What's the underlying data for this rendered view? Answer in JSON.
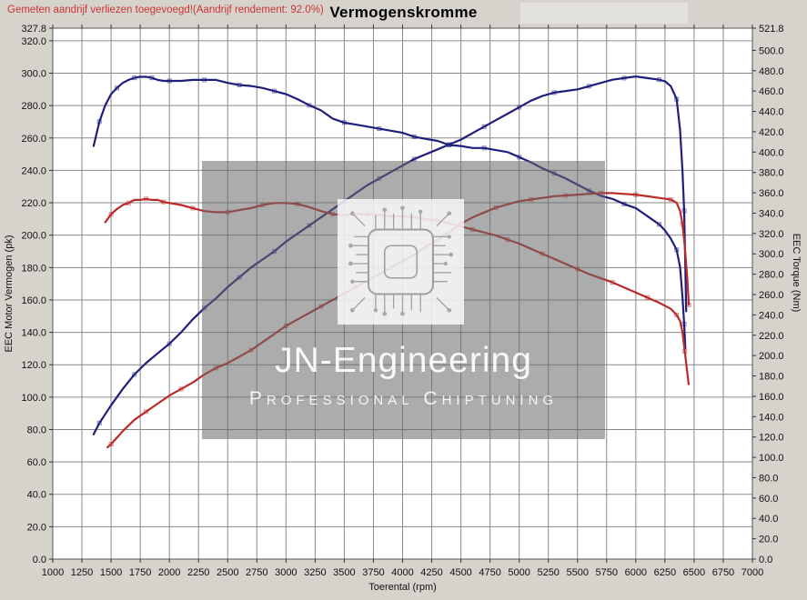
{
  "header": {
    "note": "Gemeten aandrijf verliezen toegevoegd!(Aandrijf rendement: 92.0%)",
    "title": "Vermogenskromme"
  },
  "watermark": {
    "line1": "JN-Engineering",
    "line2": "Professional Chiptuning"
  },
  "colors": {
    "background": "#d6d3cc",
    "plot_background": "#ffffff",
    "grid": "#8a8a8a",
    "frame": "#555555",
    "tuned_series": "#1e1e7d",
    "stock_series": "#bb2a28",
    "note_text": "#cc3333"
  },
  "chart_data": {
    "type": "line",
    "title": "Vermogenskromme",
    "x_axis": {
      "label": "Toerental (rpm)",
      "min": 1000,
      "max": 7000,
      "tick_step": 250,
      "tick_labels": [
        "1000",
        "1250",
        "1500",
        "1750",
        "2000",
        "2250",
        "2500",
        "2750",
        "3000",
        "3250",
        "3500",
        "3750",
        "4000",
        "4250",
        "4500",
        "4750",
        "5000",
        "5250",
        "5500",
        "5750",
        "6000",
        "6250",
        "6500",
        "6750",
        "7000"
      ]
    },
    "left_axis": {
      "label": "EEC Motor Vermogen (pk)",
      "min": 0,
      "max": 327.8,
      "tick_step": 20,
      "tick_labels": [
        "327.8",
        "320.0",
        "300.0",
        "280.0",
        "260.0",
        "240.0",
        "220.0",
        "200.0",
        "180.0",
        "160.0",
        "140.0",
        "120.0",
        "100.0",
        "80.0",
        "60.0",
        "40.0",
        "20.0",
        "0.0"
      ]
    },
    "right_axis": {
      "label": "EEC Torque (Nm)",
      "min": 0,
      "max": 521.8,
      "tick_step": 20,
      "tick_labels": [
        "521.8",
        "500.0",
        "480.0",
        "460.0",
        "440.0",
        "420.0",
        "400.0",
        "380.0",
        "360.0",
        "340.0",
        "320.0",
        "300.0",
        "280.0",
        "260.0",
        "240.0",
        "220.0",
        "200.0",
        "180.0",
        "160.0",
        "140.0",
        "120.0",
        "100.0",
        "80.0",
        "60.0",
        "40.0",
        "20.0",
        "0.0"
      ]
    },
    "grid": true,
    "legend": "none",
    "series": [
      {
        "name": "tuned-torque",
        "unit": "Nm",
        "axis": "right",
        "color": "#1e1e7d",
        "points": [
          [
            1350,
            406
          ],
          [
            1400,
            430
          ],
          [
            1450,
            446
          ],
          [
            1500,
            457
          ],
          [
            1550,
            463
          ],
          [
            1600,
            468
          ],
          [
            1650,
            471
          ],
          [
            1700,
            473
          ],
          [
            1750,
            474
          ],
          [
            1800,
            474
          ],
          [
            1850,
            473
          ],
          [
            1900,
            471
          ],
          [
            1950,
            470
          ],
          [
            2000,
            470
          ],
          [
            2100,
            470
          ],
          [
            2200,
            471
          ],
          [
            2300,
            471
          ],
          [
            2400,
            471
          ],
          [
            2500,
            468
          ],
          [
            2600,
            466
          ],
          [
            2700,
            465
          ],
          [
            2800,
            463
          ],
          [
            2900,
            460
          ],
          [
            3000,
            457
          ],
          [
            3100,
            452
          ],
          [
            3200,
            446
          ],
          [
            3300,
            441
          ],
          [
            3400,
            433
          ],
          [
            3500,
            429
          ],
          [
            3600,
            427
          ],
          [
            3700,
            425
          ],
          [
            3800,
            423
          ],
          [
            3900,
            421
          ],
          [
            4000,
            419
          ],
          [
            4100,
            415
          ],
          [
            4200,
            413
          ],
          [
            4300,
            411
          ],
          [
            4400,
            407
          ],
          [
            4500,
            406
          ],
          [
            4600,
            404
          ],
          [
            4700,
            404
          ],
          [
            4800,
            402
          ],
          [
            4900,
            400
          ],
          [
            5000,
            395
          ],
          [
            5100,
            390
          ],
          [
            5200,
            384
          ],
          [
            5300,
            379
          ],
          [
            5400,
            374
          ],
          [
            5500,
            368
          ],
          [
            5600,
            362
          ],
          [
            5700,
            357
          ],
          [
            5800,
            354
          ],
          [
            5900,
            349
          ],
          [
            6000,
            345
          ],
          [
            6100,
            337
          ],
          [
            6200,
            329
          ],
          [
            6250,
            323
          ],
          [
            6300,
            315
          ],
          [
            6350,
            304
          ],
          [
            6380,
            287
          ],
          [
            6400,
            258
          ],
          [
            6415,
            231
          ],
          [
            6425,
            207
          ]
        ]
      },
      {
        "name": "tuned-power",
        "unit": "pk",
        "axis": "left",
        "color": "#1e1e7d",
        "points": [
          [
            1350,
            77
          ],
          [
            1400,
            84
          ],
          [
            1500,
            95
          ],
          [
            1600,
            105
          ],
          [
            1700,
            114
          ],
          [
            1800,
            121
          ],
          [
            1900,
            127
          ],
          [
            2000,
            133
          ],
          [
            2100,
            140
          ],
          [
            2200,
            148
          ],
          [
            2300,
            155
          ],
          [
            2400,
            161
          ],
          [
            2500,
            168
          ],
          [
            2600,
            174
          ],
          [
            2700,
            180
          ],
          [
            2800,
            185
          ],
          [
            2900,
            190
          ],
          [
            3000,
            196
          ],
          [
            3100,
            201
          ],
          [
            3200,
            206
          ],
          [
            3300,
            211
          ],
          [
            3400,
            216
          ],
          [
            3500,
            221
          ],
          [
            3600,
            226
          ],
          [
            3700,
            231
          ],
          [
            3800,
            235
          ],
          [
            3900,
            239
          ],
          [
            4000,
            243
          ],
          [
            4100,
            247
          ],
          [
            4200,
            250
          ],
          [
            4300,
            253
          ],
          [
            4400,
            256
          ],
          [
            4500,
            259
          ],
          [
            4600,
            263
          ],
          [
            4700,
            267
          ],
          [
            4800,
            271
          ],
          [
            4900,
            275
          ],
          [
            5000,
            279
          ],
          [
            5100,
            283
          ],
          [
            5200,
            286
          ],
          [
            5300,
            288
          ],
          [
            5400,
            289
          ],
          [
            5500,
            290
          ],
          [
            5600,
            292
          ],
          [
            5700,
            294
          ],
          [
            5800,
            296
          ],
          [
            5900,
            297
          ],
          [
            6000,
            298
          ],
          [
            6100,
            297
          ],
          [
            6200,
            296
          ],
          [
            6250,
            295
          ],
          [
            6300,
            292
          ],
          [
            6350,
            284
          ],
          [
            6380,
            265
          ],
          [
            6400,
            240
          ],
          [
            6415,
            215
          ],
          [
            6425,
            180
          ],
          [
            6432,
            153
          ]
        ]
      },
      {
        "name": "stock-power",
        "unit": "pk",
        "axis": "left",
        "color": "#bb2a28",
        "points": [
          [
            1470,
            69
          ],
          [
            1500,
            71
          ],
          [
            1600,
            79
          ],
          [
            1700,
            86
          ],
          [
            1800,
            91
          ],
          [
            1900,
            96
          ],
          [
            2000,
            101
          ],
          [
            2100,
            105
          ],
          [
            2200,
            109
          ],
          [
            2300,
            114
          ],
          [
            2400,
            118
          ],
          [
            2500,
            121
          ],
          [
            2600,
            125
          ],
          [
            2700,
            129
          ],
          [
            2800,
            134
          ],
          [
            2900,
            139
          ],
          [
            3000,
            144
          ],
          [
            3100,
            148
          ],
          [
            3200,
            152
          ],
          [
            3300,
            156
          ],
          [
            3400,
            160
          ],
          [
            3500,
            164
          ],
          [
            3600,
            168
          ],
          [
            3700,
            172
          ],
          [
            3800,
            176
          ],
          [
            3900,
            180
          ],
          [
            4000,
            184
          ],
          [
            4100,
            188
          ],
          [
            4200,
            193
          ],
          [
            4300,
            197
          ],
          [
            4400,
            202
          ],
          [
            4500,
            207
          ],
          [
            4600,
            211
          ],
          [
            4700,
            214
          ],
          [
            4800,
            217
          ],
          [
            4900,
            219
          ],
          [
            5000,
            221
          ],
          [
            5100,
            222
          ],
          [
            5200,
            223
          ],
          [
            5300,
            224
          ],
          [
            5400,
            224.5
          ],
          [
            5500,
            225
          ],
          [
            5600,
            225.5
          ],
          [
            5700,
            226
          ],
          [
            5800,
            226
          ],
          [
            5900,
            225.5
          ],
          [
            6000,
            225
          ],
          [
            6100,
            224
          ],
          [
            6200,
            223
          ],
          [
            6300,
            222
          ],
          [
            6350,
            220
          ],
          [
            6380,
            215
          ],
          [
            6400,
            207
          ],
          [
            6420,
            193
          ],
          [
            6440,
            175
          ],
          [
            6455,
            157
          ]
        ]
      },
      {
        "name": "stock-torque",
        "unit": "Nm",
        "axis": "right",
        "color": "#bb2a28",
        "points": [
          [
            1450,
            331
          ],
          [
            1500,
            339
          ],
          [
            1550,
            344
          ],
          [
            1600,
            348
          ],
          [
            1650,
            350
          ],
          [
            1700,
            353
          ],
          [
            1750,
            353
          ],
          [
            1800,
            354
          ],
          [
            1850,
            353
          ],
          [
            1900,
            353
          ],
          [
            1950,
            351
          ],
          [
            2000,
            350
          ],
          [
            2100,
            348
          ],
          [
            2200,
            345
          ],
          [
            2300,
            342
          ],
          [
            2400,
            341
          ],
          [
            2500,
            341
          ],
          [
            2600,
            343
          ],
          [
            2700,
            345
          ],
          [
            2800,
            348
          ],
          [
            2900,
            350
          ],
          [
            3000,
            350
          ],
          [
            3100,
            349
          ],
          [
            3200,
            346
          ],
          [
            3300,
            342
          ],
          [
            3400,
            339
          ],
          [
            3500,
            338
          ],
          [
            3600,
            339
          ],
          [
            3700,
            339
          ],
          [
            3800,
            338
          ],
          [
            3900,
            337
          ],
          [
            4000,
            337
          ],
          [
            4100,
            336
          ],
          [
            4200,
            334
          ],
          [
            4300,
            333
          ],
          [
            4400,
            330
          ],
          [
            4500,
            327
          ],
          [
            4600,
            324
          ],
          [
            4700,
            321
          ],
          [
            4800,
            318
          ],
          [
            4900,
            314
          ],
          [
            5000,
            310
          ],
          [
            5100,
            305
          ],
          [
            5200,
            300
          ],
          [
            5300,
            295
          ],
          [
            5400,
            290
          ],
          [
            5500,
            285
          ],
          [
            5600,
            280
          ],
          [
            5700,
            276
          ],
          [
            5800,
            272
          ],
          [
            5900,
            267
          ],
          [
            6000,
            262
          ],
          [
            6100,
            257
          ],
          [
            6200,
            252
          ],
          [
            6300,
            246
          ],
          [
            6350,
            240
          ],
          [
            6380,
            234
          ],
          [
            6400,
            223
          ],
          [
            6420,
            204
          ],
          [
            6440,
            185
          ],
          [
            6453,
            172
          ]
        ]
      }
    ]
  }
}
